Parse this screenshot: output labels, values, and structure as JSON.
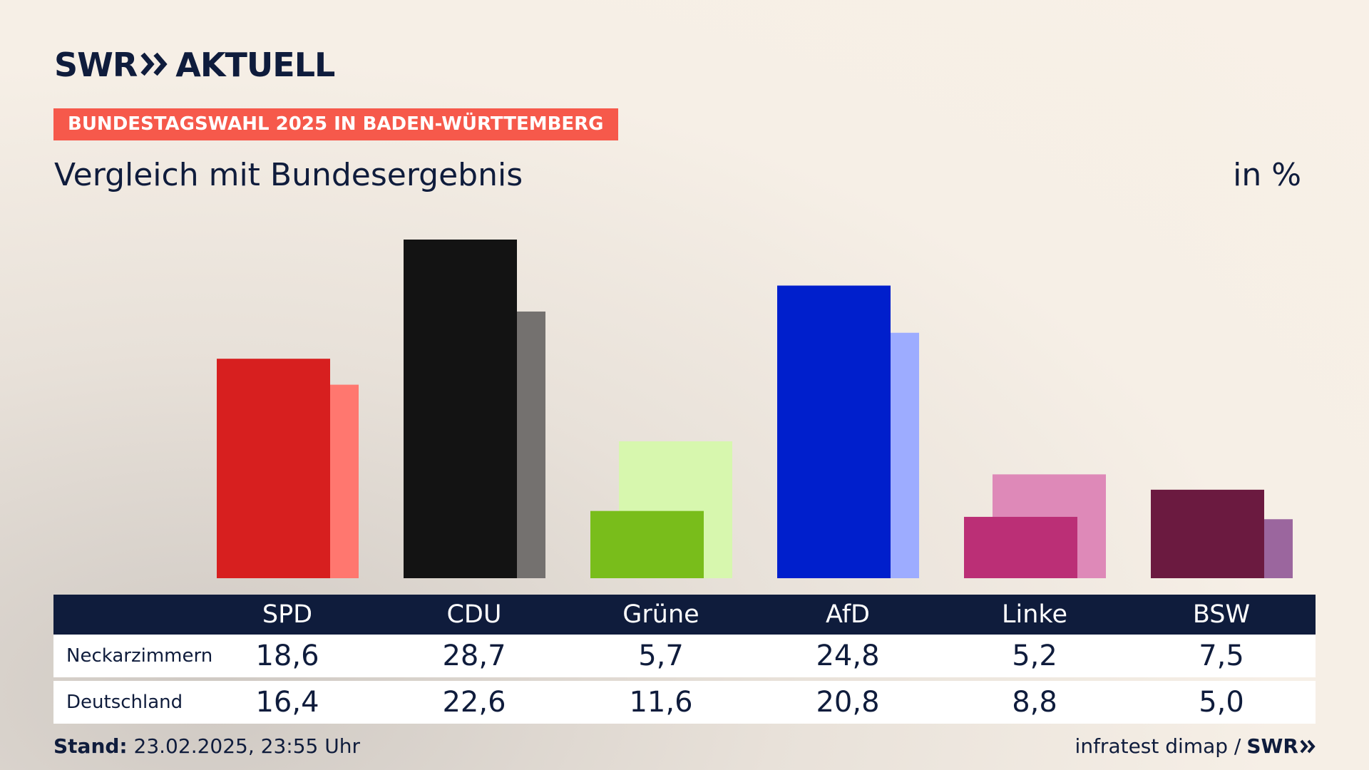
{
  "header": {
    "brand": "SWR",
    "brand_suffix": "AKTUELL",
    "badge": "BUNDESTAGSWAHL 2025 IN BADEN-WÜRTTEMBERG",
    "subtitle": "Vergleich mit Bundesergebnis",
    "unit": "in %"
  },
  "table": {
    "rows": [
      {
        "label": "Neckarzimmern",
        "values": [
          "18,6",
          "28,7",
          "5,7",
          "24,8",
          "5,2",
          "7,5"
        ]
      },
      {
        "label": "Deutschland",
        "values": [
          "16,4",
          "22,6",
          "11,6",
          "20,8",
          "8,8",
          "5,0"
        ]
      }
    ]
  },
  "footer": {
    "stand_label": "Stand:",
    "stand_value": "23.02.2025, 23:55 Uhr",
    "source": "infratest dimap /",
    "source_brand": "SWR"
  },
  "colors": {
    "primary": [
      "#d71f1f",
      "#131313",
      "#79bd1b",
      "#001fcc",
      "#bb2f76",
      "#6b1a40"
    ],
    "secondary": [
      "#ff776f",
      "#74716f",
      "#d7f7ae",
      "#9dacff",
      "#de89b8",
      "#9b669e"
    ]
  },
  "chart_data": {
    "type": "bar",
    "categories": [
      "SPD",
      "CDU",
      "Grüne",
      "AfD",
      "Linke",
      "BSW"
    ],
    "series": [
      {
        "name": "Neckarzimmern",
        "values": [
          18.6,
          28.7,
          5.7,
          24.8,
          5.2,
          7.5
        ]
      },
      {
        "name": "Deutschland",
        "values": [
          16.4,
          22.6,
          11.6,
          20.8,
          8.8,
          5.0
        ]
      }
    ],
    "ylim": [
      0,
      28.7
    ],
    "grid": false,
    "legend": "none"
  }
}
